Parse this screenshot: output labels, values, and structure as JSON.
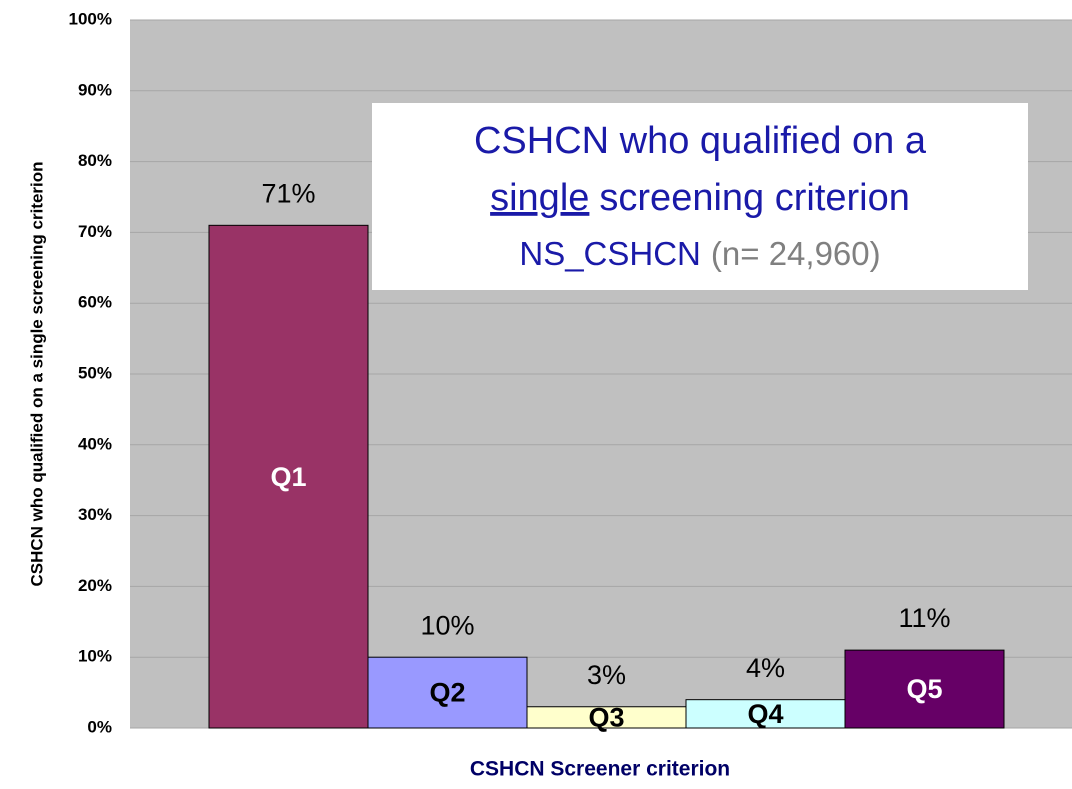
{
  "chart_data": {
    "type": "bar",
    "categories": [
      "Q1",
      "Q2",
      "Q3",
      "Q4",
      "Q5"
    ],
    "values": [
      71,
      10,
      3,
      4,
      11
    ],
    "value_labels": [
      "71%",
      "10%",
      "3%",
      "4%",
      "11%"
    ],
    "colors": [
      "#993366",
      "#9999ff",
      "#ffffcc",
      "#ccffff",
      "#660066"
    ],
    "category_label_colors": [
      "#ffffff",
      "#000000",
      "#000000",
      "#000000",
      "#ffffff"
    ],
    "ylim": [
      0,
      100
    ],
    "yticks": [
      {
        "value": 0,
        "label": "0%"
      },
      {
        "value": 10,
        "label": "10%"
      },
      {
        "value": 20,
        "label": "20%"
      },
      {
        "value": 30,
        "label": "30%"
      },
      {
        "value": 40,
        "label": "40%"
      },
      {
        "value": 50,
        "label": "50%"
      },
      {
        "value": 60,
        "label": "60%"
      },
      {
        "value": 70,
        "label": "70%"
      },
      {
        "value": 80,
        "label": "80%"
      },
      {
        "value": 90,
        "label": "90%"
      },
      {
        "value": 100,
        "label": "100%"
      }
    ],
    "grid": true,
    "y_label": "CSHCN who qualified on a single screening criterion",
    "x_label": "CSHCN Screener criterion",
    "annotation": {
      "line1": "CSHCN who qualified on a",
      "line2_underlined": "single",
      "line2_rest": "screening criterion",
      "line3": "NS_CSHCN",
      "line3_note": "(n= 24,960)"
    }
  }
}
